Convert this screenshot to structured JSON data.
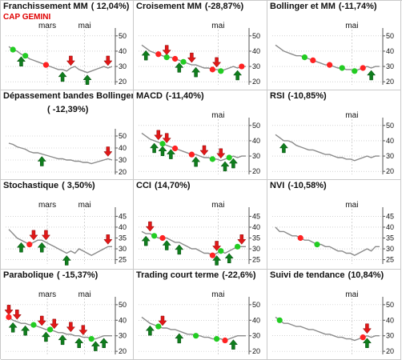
{
  "colors": {
    "price_line": "#8a8a8a",
    "buy_arrow": "#0f7d1d",
    "sell_arrow": "#e01818",
    "buy_dot": "#22cc22",
    "sell_dot": "#ff2222",
    "grid": "#b8b8b8",
    "subtitle": "#e00000"
  },
  "subtitle": "CAP GEMINI",
  "chart_data": [
    {
      "type": "line",
      "name": "Franchissement MM",
      "perf": "( 12,04%)",
      "months": [
        "mars",
        "mai"
      ],
      "y_ticks": [
        20,
        30,
        40,
        50
      ],
      "ylim": [
        18,
        52
      ],
      "series": [
        {
          "values": [
            43,
            41,
            40,
            38,
            37,
            35,
            34,
            33,
            32,
            31,
            30,
            29,
            28,
            28,
            27,
            29,
            30,
            28,
            27,
            26,
            27,
            28,
            29,
            30,
            29,
            30
          ]
        }
      ],
      "signals": [
        {
          "type": "dot",
          "color": "buy",
          "i": 1
        },
        {
          "type": "arrow_up",
          "i": 3
        },
        {
          "type": "dot",
          "color": "buy",
          "i": 4
        },
        {
          "type": "dot",
          "color": "sell",
          "i": 9
        },
        {
          "type": "arrow_up",
          "i": 13
        },
        {
          "type": "arrow_down",
          "i": 15
        },
        {
          "type": "arrow_up",
          "i": 19
        },
        {
          "type": "arrow_down",
          "i": 24
        }
      ]
    },
    {
      "type": "line",
      "name": "Croisement MM",
      "perf": "(-28,87%)",
      "months": [
        "mai"
      ],
      "y_ticks": [
        20,
        30,
        40,
        50
      ],
      "ylim": [
        18,
        52
      ],
      "series": [
        {
          "values": [
            44,
            42,
            40,
            39,
            38,
            37,
            36,
            36,
            35,
            34,
            33,
            32,
            31,
            31,
            30,
            29,
            29,
            28,
            28,
            27,
            28,
            29,
            30,
            29,
            30,
            30
          ]
        }
      ],
      "signals": [
        {
          "type": "arrow_up",
          "i": 1
        },
        {
          "type": "dot",
          "color": "sell",
          "i": 4
        },
        {
          "type": "dot",
          "color": "buy",
          "i": 6
        },
        {
          "type": "arrow_down",
          "i": 6
        },
        {
          "type": "dot",
          "color": "sell",
          "i": 8
        },
        {
          "type": "arrow_up",
          "i": 9
        },
        {
          "type": "dot",
          "color": "buy",
          "i": 10
        },
        {
          "type": "arrow_down",
          "i": 12
        },
        {
          "type": "arrow_up",
          "i": 13
        },
        {
          "type": "dot",
          "color": "sell",
          "i": 17
        },
        {
          "type": "arrow_down",
          "i": 18
        },
        {
          "type": "dot",
          "color": "buy",
          "i": 19
        },
        {
          "type": "arrow_up",
          "i": 23
        },
        {
          "type": "dot",
          "color": "sell",
          "i": 24
        }
      ]
    },
    {
      "type": "line",
      "name": "Bollinger et MM",
      "perf": "(-11,74%)",
      "months": [
        "mai"
      ],
      "y_ticks": [
        20,
        30,
        40,
        50
      ],
      "ylim": [
        18,
        52
      ],
      "series": [
        {
          "values": [
            44,
            42,
            40,
            39,
            38,
            37,
            37,
            36,
            35,
            34,
            33,
            32,
            31,
            31,
            30,
            29,
            29,
            28,
            28,
            27,
            28,
            29,
            30,
            29,
            30,
            30
          ]
        }
      ],
      "signals": [
        {
          "type": "dot",
          "color": "buy",
          "i": 7
        },
        {
          "type": "dot",
          "color": "sell",
          "i": 9
        },
        {
          "type": "dot",
          "color": "sell",
          "i": 13
        },
        {
          "type": "dot",
          "color": "buy",
          "i": 16
        },
        {
          "type": "dot",
          "color": "buy",
          "i": 19
        },
        {
          "type": "dot",
          "color": "sell",
          "i": 21
        },
        {
          "type": "arrow_up",
          "i": 23
        }
      ]
    },
    {
      "type": "line",
      "name": "Dépassement bandes Bollinger",
      "perf": "( -12,39%)",
      "months": [],
      "y_ticks": [
        20,
        30,
        40,
        50
      ],
      "ylim": [
        18,
        52
      ],
      "series": [
        {
          "values": [
            44,
            43,
            41,
            40,
            39,
            37,
            36,
            36,
            35,
            34,
            33,
            32,
            31,
            31,
            30,
            30,
            29,
            29,
            28,
            28,
            27,
            28,
            29,
            30,
            31,
            30
          ]
        }
      ],
      "signals": [
        {
          "type": "arrow_up",
          "i": 8
        },
        {
          "type": "arrow_down",
          "i": 24
        }
      ]
    },
    {
      "type": "line",
      "name": "MACD",
      "perf": "(-11,40%)",
      "months": [
        "mai"
      ],
      "y_ticks": [
        20,
        30,
        40,
        50
      ],
      "ylim": [
        18,
        52
      ],
      "series": [
        {
          "values": [
            45,
            43,
            41,
            40,
            39,
            38,
            37,
            36,
            35,
            34,
            33,
            32,
            31,
            31,
            30,
            29,
            29,
            28,
            28,
            27,
            28,
            29,
            30,
            29,
            30,
            30
          ]
        }
      ],
      "signals": [
        {
          "type": "arrow_up",
          "i": 3
        },
        {
          "type": "arrow_down",
          "i": 4
        },
        {
          "type": "arrow_up",
          "i": 5
        },
        {
          "type": "dot",
          "color": "buy",
          "i": 5
        },
        {
          "type": "arrow_down",
          "i": 6
        },
        {
          "type": "arrow_up",
          "i": 7
        },
        {
          "type": "dot",
          "color": "sell",
          "i": 8
        },
        {
          "type": "dot",
          "color": "sell",
          "i": 12
        },
        {
          "type": "arrow_up",
          "i": 13
        },
        {
          "type": "arrow_down",
          "i": 15
        },
        {
          "type": "dot",
          "color": "buy",
          "i": 17
        },
        {
          "type": "arrow_down",
          "i": 19
        },
        {
          "type": "arrow_up",
          "i": 20
        },
        {
          "type": "dot",
          "color": "buy",
          "i": 21
        },
        {
          "type": "arrow_up",
          "i": 22
        }
      ]
    },
    {
      "type": "line",
      "name": "RSI",
      "perf": "(-10,85%)",
      "months": [
        "mai"
      ],
      "y_ticks": [
        20,
        30,
        40,
        50
      ],
      "ylim": [
        18,
        52
      ],
      "series": [
        {
          "values": [
            44,
            42,
            40,
            40,
            39,
            37,
            36,
            35,
            34,
            34,
            33,
            32,
            31,
            31,
            30,
            29,
            29,
            28,
            28,
            27,
            28,
            29,
            30,
            29,
            30,
            30
          ]
        }
      ],
      "signals": [
        {
          "type": "arrow_up",
          "i": 2
        }
      ]
    },
    {
      "type": "line",
      "name": "Stochastique",
      "perf": "( 3,50%)",
      "months": [
        "mars",
        "mai"
      ],
      "y_ticks": [
        25,
        30,
        35,
        40,
        45
      ],
      "ylim": [
        23,
        47
      ],
      "series": [
        {
          "values": [
            39,
            37,
            35,
            34,
            33,
            32,
            33,
            34,
            34,
            33,
            32,
            31,
            30,
            29,
            28,
            29,
            28,
            30,
            29,
            28,
            27,
            28,
            29,
            30,
            31,
            31
          ]
        }
      ],
      "signals": [
        {
          "type": "arrow_up",
          "i": 3
        },
        {
          "type": "dot",
          "color": "sell",
          "i": 5
        },
        {
          "type": "arrow_down",
          "i": 6
        },
        {
          "type": "arrow_up",
          "i": 8
        },
        {
          "type": "arrow_down",
          "i": 9
        },
        {
          "type": "arrow_up",
          "i": 14
        },
        {
          "type": "arrow_down",
          "i": 24
        }
      ]
    },
    {
      "type": "line",
      "name": "CCI",
      "perf": "(14,70%)",
      "months": [
        "mai"
      ],
      "y_ticks": [
        25,
        30,
        35,
        40,
        45
      ],
      "ylim": [
        23,
        47
      ],
      "series": [
        {
          "values": [
            38,
            37,
            37,
            36,
            35,
            35,
            35,
            34,
            33,
            33,
            32,
            31,
            30,
            30,
            29,
            28,
            28,
            27,
            28,
            29,
            28,
            29,
            30,
            31,
            31,
            31
          ]
        }
      ],
      "signals": [
        {
          "type": "arrow_up",
          "i": 1
        },
        {
          "type": "arrow_down",
          "i": 2
        },
        {
          "type": "dot",
          "color": "buy",
          "i": 3
        },
        {
          "type": "dot",
          "color": "sell",
          "i": 5
        },
        {
          "type": "arrow_up",
          "i": 6
        },
        {
          "type": "arrow_up",
          "i": 9
        },
        {
          "type": "dot",
          "color": "sell",
          "i": 17
        },
        {
          "type": "arrow_down",
          "i": 18
        },
        {
          "type": "arrow_up",
          "i": 18
        },
        {
          "type": "dot",
          "color": "buy",
          "i": 19
        },
        {
          "type": "arrow_up",
          "i": 21
        },
        {
          "type": "dot",
          "color": "buy",
          "i": 23
        },
        {
          "type": "arrow_down",
          "i": 24
        }
      ]
    },
    {
      "type": "line",
      "name": "NVI",
      "perf": "(-10,58%)",
      "months": [
        "mai"
      ],
      "y_ticks": [
        25,
        30,
        35,
        40,
        45
      ],
      "ylim": [
        23,
        47
      ],
      "series": [
        {
          "values": [
            40,
            38,
            38,
            37,
            36,
            36,
            35,
            34,
            34,
            33,
            32,
            32,
            31,
            31,
            30,
            29,
            29,
            28,
            28,
            27,
            28,
            29,
            30,
            29,
            31,
            31
          ]
        }
      ],
      "signals": [
        {
          "type": "dot",
          "color": "sell",
          "i": 6
        },
        {
          "type": "dot",
          "color": "buy",
          "i": 10
        }
      ]
    },
    {
      "type": "line",
      "name": "Parabolique",
      "perf": "( -15,37%)",
      "months": [
        "mars",
        "mai"
      ],
      "y_ticks": [
        20,
        30,
        40,
        50
      ],
      "ylim": [
        18,
        52
      ],
      "series": [
        {
          "values": [
            42,
            40,
            39,
            38,
            38,
            37,
            37,
            36,
            35,
            34,
            34,
            33,
            32,
            32,
            31,
            31,
            30,
            30,
            29,
            29,
            28,
            28,
            29,
            30,
            30,
            30
          ]
        }
      ],
      "signals": [
        {
          "type": "arrow_down",
          "i": 0
        },
        {
          "type": "dot",
          "color": "sell",
          "i": 0
        },
        {
          "type": "arrow_up",
          "i": 1
        },
        {
          "type": "arrow_down",
          "i": 2
        },
        {
          "type": "arrow_up",
          "i": 4
        },
        {
          "type": "dot",
          "color": "buy",
          "i": 6
        },
        {
          "type": "arrow_down",
          "i": 8
        },
        {
          "type": "arrow_up",
          "i": 9
        },
        {
          "type": "dot",
          "color": "buy",
          "i": 10
        },
        {
          "type": "arrow_down",
          "i": 11
        },
        {
          "type": "arrow_up",
          "i": 13
        },
        {
          "type": "arrow_down",
          "i": 15
        },
        {
          "type": "arrow_up",
          "i": 17
        },
        {
          "type": "arrow_down",
          "i": 18
        },
        {
          "type": "dot",
          "color": "buy",
          "i": 20
        },
        {
          "type": "arrow_up",
          "i": 21
        },
        {
          "type": "arrow_up",
          "i": 23
        }
      ]
    },
    {
      "type": "line",
      "name": "Trading court terme",
      "perf": "(-22,6%)",
      "months": [
        "mai"
      ],
      "y_ticks": [
        20,
        30,
        40,
        50
      ],
      "ylim": [
        18,
        52
      ],
      "series": [
        {
          "values": [
            42,
            40,
            38,
            37,
            36,
            35,
            35,
            34,
            34,
            33,
            32,
            31,
            31,
            30,
            30,
            29,
            29,
            28,
            28,
            28,
            27,
            28,
            29,
            30,
            30,
            30
          ]
        }
      ],
      "signals": [
        {
          "type": "arrow_up",
          "i": 2
        },
        {
          "type": "dot",
          "color": "buy",
          "i": 4
        },
        {
          "type": "arrow_down",
          "i": 5
        },
        {
          "type": "arrow_up",
          "i": 9
        },
        {
          "type": "dot",
          "color": "buy",
          "i": 13
        },
        {
          "type": "dot",
          "color": "buy",
          "i": 18
        },
        {
          "type": "dot",
          "color": "sell",
          "i": 20
        },
        {
          "type": "arrow_up",
          "i": 22
        }
      ]
    },
    {
      "type": "line",
      "name": "Suivi de tendance",
      "perf": "(10,84%)",
      "months": [
        "mai"
      ],
      "y_ticks": [
        20,
        30,
        40,
        50
      ],
      "ylim": [
        18,
        52
      ],
      "series": [
        {
          "values": [
            42,
            40,
            38,
            38,
            37,
            36,
            36,
            35,
            34,
            34,
            33,
            32,
            31,
            31,
            30,
            29,
            29,
            28,
            28,
            27,
            28,
            29,
            30,
            29,
            30,
            30
          ]
        }
      ],
      "signals": [
        {
          "type": "dot",
          "color": "buy",
          "i": 1
        },
        {
          "type": "dot",
          "color": "sell",
          "i": 21
        },
        {
          "type": "arrow_down",
          "i": 22
        },
        {
          "type": "arrow_up",
          "i": 22
        }
      ]
    }
  ]
}
